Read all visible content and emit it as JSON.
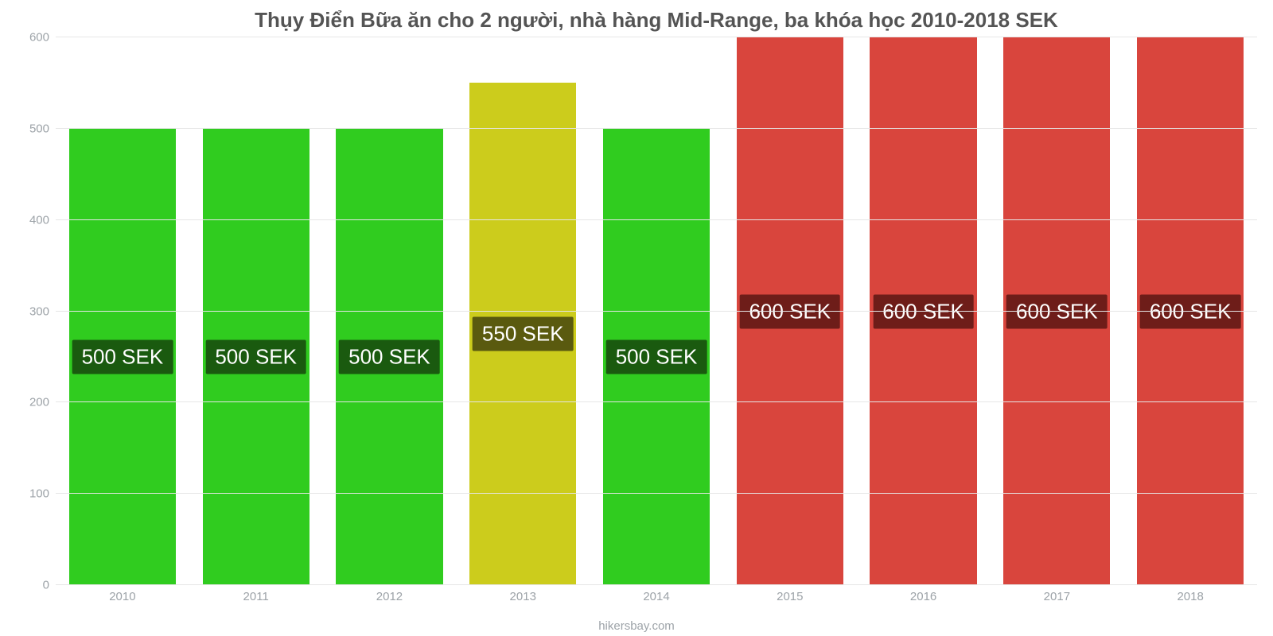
{
  "chart": {
    "type": "bar",
    "title": "Thụy Điển Bữa ăn cho 2 người, nhà hàng Mid-Range, ba khóa học 2010-2018 SEK",
    "title_fontsize": 26,
    "title_color": "#545454",
    "credit": "hikersbay.com",
    "background_color": "#ffffff",
    "grid_color": "#e6e6e6",
    "axis_text_color": "#9da3a8",
    "axis_fontsize": 15,
    "ylim": [
      0,
      600
    ],
    "ytick_step": 100,
    "yticks": [
      0,
      100,
      200,
      300,
      400,
      500,
      600
    ],
    "bar_width_pct": 80,
    "bar_label_fontsize": 26,
    "categories": [
      "2010",
      "2011",
      "2012",
      "2013",
      "2014",
      "2015",
      "2016",
      "2017",
      "2018"
    ],
    "values": [
      500,
      500,
      500,
      550,
      500,
      600,
      600,
      600,
      600
    ],
    "value_labels": [
      "500 SEK",
      "500 SEK",
      "500 SEK",
      "550 SEK",
      "500 SEK",
      "600 SEK",
      "600 SEK",
      "600 SEK",
      "600 SEK"
    ],
    "bar_colors": [
      "#30cc1f",
      "#30cc1f",
      "#30cc1f",
      "#cccc1c",
      "#30cc1f",
      "#d9453d",
      "#d9453d",
      "#d9453d",
      "#d9453d"
    ],
    "label_bg_colors": [
      "#1a5a0f",
      "#1a5a0f",
      "#1a5a0f",
      "#5a5a0f",
      "#1a5a0f",
      "#6e1d19",
      "#6e1d19",
      "#6e1d19",
      "#6e1d19"
    ]
  }
}
